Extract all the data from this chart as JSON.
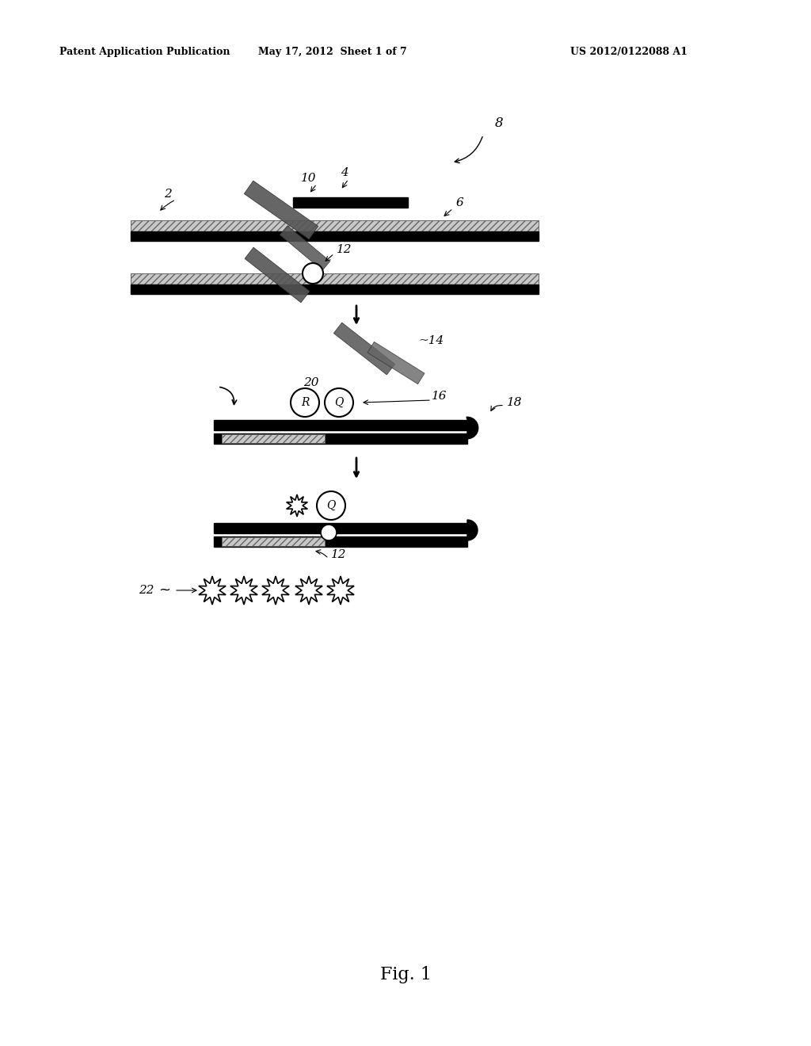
{
  "bg_color": "#ffffff",
  "header_text1": "Patent Application Publication",
  "header_text2": "May 17, 2012  Sheet 1 of 7",
  "header_text3": "US 2012/0122088 A1",
  "fig_label": "Fig. 1"
}
